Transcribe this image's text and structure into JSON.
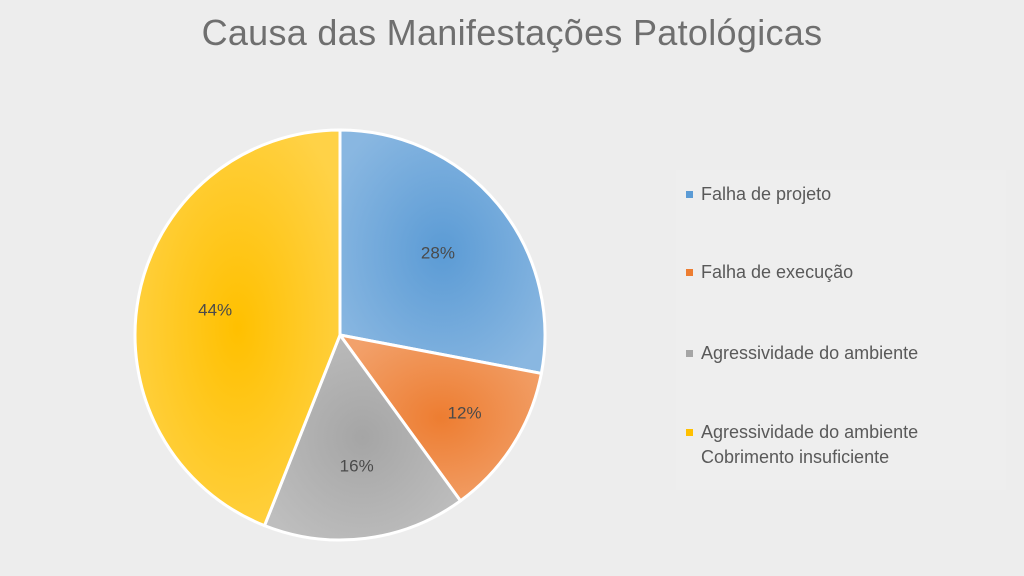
{
  "chart_data": {
    "type": "pie",
    "title": "Causa das Manifestações Patológicas",
    "slices": [
      {
        "label": "Falha de projeto",
        "value": 28,
        "value_label": "28%",
        "color": "#5b9bd5"
      },
      {
        "label": "Falha de execução",
        "value": 12,
        "value_label": "12%",
        "color": "#ed7d31"
      },
      {
        "label": "Agressividade do ambiente",
        "value": 16,
        "value_label": "16%",
        "color": "#a5a5a5"
      },
      {
        "label": "Agressividade do ambiente\nCobrimento insuficiente",
        "value": 44,
        "value_label": "44%",
        "color": "#ffc000"
      }
    ],
    "legend_position": "right"
  }
}
